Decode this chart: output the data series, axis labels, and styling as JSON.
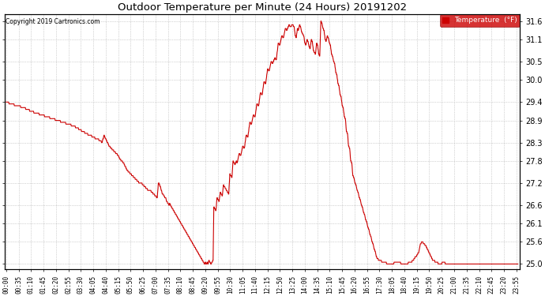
{
  "title": "Outdoor Temperature per Minute (24 Hours) 20191202",
  "copyright_text": "Copyright 2019 Cartronics.com",
  "legend_label": "Temperature  (°F)",
  "line_color": "#cc0000",
  "background_color": "#ffffff",
  "grid_color": "#999999",
  "ylim": [
    24.85,
    31.78
  ],
  "yticks": [
    25.0,
    25.6,
    26.1,
    26.6,
    27.2,
    27.8,
    28.3,
    28.9,
    29.4,
    30.0,
    30.5,
    31.1,
    31.6
  ],
  "x_tick_labels": [
    "00:00",
    "00:35",
    "01:10",
    "01:45",
    "02:20",
    "02:55",
    "03:30",
    "04:05",
    "04:40",
    "05:15",
    "05:50",
    "06:25",
    "07:00",
    "07:35",
    "08:10",
    "08:45",
    "09:20",
    "09:55",
    "10:30",
    "11:05",
    "11:40",
    "12:15",
    "12:50",
    "13:25",
    "14:00",
    "14:35",
    "15:10",
    "15:45",
    "16:20",
    "16:55",
    "17:30",
    "18:05",
    "18:40",
    "19:15",
    "19:50",
    "20:25",
    "21:00",
    "21:35",
    "22:10",
    "22:45",
    "23:20",
    "23:55"
  ],
  "control_points": [
    [
      0,
      29.4
    ],
    [
      15,
      29.35
    ],
    [
      30,
      29.3
    ],
    [
      50,
      29.25
    ],
    [
      70,
      29.15
    ],
    [
      85,
      29.1
    ],
    [
      100,
      29.05
    ],
    [
      115,
      29.0
    ],
    [
      130,
      28.95
    ],
    [
      145,
      28.9
    ],
    [
      160,
      28.85
    ],
    [
      175,
      28.8
    ],
    [
      190,
      28.75
    ],
    [
      200,
      28.7
    ],
    [
      215,
      28.6
    ],
    [
      225,
      28.55
    ],
    [
      235,
      28.5
    ],
    [
      245,
      28.45
    ],
    [
      255,
      28.4
    ],
    [
      265,
      28.35
    ],
    [
      270,
      28.3
    ],
    [
      275,
      28.5
    ],
    [
      280,
      28.4
    ],
    [
      285,
      28.3
    ],
    [
      290,
      28.2
    ],
    [
      295,
      28.15
    ],
    [
      300,
      28.1
    ],
    [
      305,
      28.05
    ],
    [
      310,
      28.0
    ],
    [
      315,
      27.95
    ],
    [
      320,
      27.85
    ],
    [
      325,
      27.8
    ],
    [
      330,
      27.75
    ],
    [
      335,
      27.65
    ],
    [
      340,
      27.55
    ],
    [
      345,
      27.5
    ],
    [
      350,
      27.45
    ],
    [
      355,
      27.4
    ],
    [
      360,
      27.35
    ],
    [
      365,
      27.3
    ],
    [
      370,
      27.25
    ],
    [
      375,
      27.2
    ],
    [
      380,
      27.2
    ],
    [
      385,
      27.15
    ],
    [
      390,
      27.1
    ],
    [
      395,
      27.05
    ],
    [
      400,
      27.0
    ],
    [
      405,
      27.0
    ],
    [
      410,
      26.95
    ],
    [
      415,
      26.9
    ],
    [
      420,
      26.85
    ],
    [
      425,
      26.8
    ],
    [
      428,
      27.2
    ],
    [
      432,
      27.15
    ],
    [
      436,
      27.0
    ],
    [
      440,
      26.9
    ],
    [
      444,
      26.85
    ],
    [
      448,
      26.8
    ],
    [
      452,
      26.7
    ],
    [
      455,
      26.65
    ],
    [
      458,
      26.6
    ],
    [
      460,
      26.65
    ],
    [
      462,
      26.6
    ],
    [
      465,
      26.55
    ],
    [
      468,
      26.5
    ],
    [
      471,
      26.45
    ],
    [
      474,
      26.4
    ],
    [
      477,
      26.35
    ],
    [
      480,
      26.3
    ],
    [
      483,
      26.25
    ],
    [
      486,
      26.2
    ],
    [
      489,
      26.15
    ],
    [
      492,
      26.1
    ],
    [
      495,
      26.05
    ],
    [
      498,
      26.0
    ],
    [
      501,
      25.95
    ],
    [
      504,
      25.9
    ],
    [
      507,
      25.85
    ],
    [
      510,
      25.8
    ],
    [
      513,
      25.75
    ],
    [
      516,
      25.7
    ],
    [
      519,
      25.65
    ],
    [
      522,
      25.6
    ],
    [
      525,
      25.55
    ],
    [
      528,
      25.5
    ],
    [
      531,
      25.45
    ],
    [
      534,
      25.4
    ],
    [
      537,
      25.35
    ],
    [
      540,
      25.3
    ],
    [
      543,
      25.25
    ],
    [
      546,
      25.2
    ],
    [
      549,
      25.15
    ],
    [
      552,
      25.1
    ],
    [
      555,
      25.05
    ],
    [
      558,
      25.0
    ],
    [
      560,
      25.05
    ],
    [
      563,
      25.0
    ],
    [
      565,
      25.05
    ],
    [
      568,
      25.0
    ],
    [
      570,
      25.1
    ],
    [
      573,
      25.05
    ],
    [
      576,
      25.0
    ],
    [
      579,
      25.05
    ],
    [
      582,
      25.1
    ],
    [
      584,
      26.55
    ],
    [
      587,
      26.5
    ],
    [
      590,
      26.45
    ],
    [
      593,
      26.8
    ],
    [
      596,
      26.75
    ],
    [
      599,
      26.7
    ],
    [
      602,
      26.95
    ],
    [
      605,
      26.9
    ],
    [
      608,
      26.85
    ],
    [
      611,
      27.15
    ],
    [
      614,
      27.1
    ],
    [
      617,
      27.05
    ],
    [
      620,
      27.0
    ],
    [
      623,
      26.95
    ],
    [
      626,
      26.9
    ],
    [
      629,
      27.45
    ],
    [
      632,
      27.4
    ],
    [
      635,
      27.35
    ],
    [
      638,
      27.8
    ],
    [
      641,
      27.75
    ],
    [
      644,
      27.7
    ],
    [
      647,
      27.8
    ],
    [
      650,
      27.75
    ],
    [
      655,
      28.0
    ],
    [
      660,
      27.95
    ],
    [
      665,
      28.2
    ],
    [
      670,
      28.15
    ],
    [
      675,
      28.5
    ],
    [
      680,
      28.45
    ],
    [
      685,
      28.85
    ],
    [
      690,
      28.8
    ],
    [
      695,
      29.05
    ],
    [
      700,
      29.0
    ],
    [
      705,
      29.35
    ],
    [
      710,
      29.3
    ],
    [
      715,
      29.65
    ],
    [
      720,
      29.6
    ],
    [
      725,
      29.95
    ],
    [
      730,
      29.9
    ],
    [
      735,
      30.3
    ],
    [
      740,
      30.25
    ],
    [
      745,
      30.5
    ],
    [
      750,
      30.45
    ],
    [
      755,
      30.6
    ],
    [
      760,
      30.55
    ],
    [
      765,
      31.0
    ],
    [
      770,
      30.95
    ],
    [
      775,
      31.2
    ],
    [
      780,
      31.15
    ],
    [
      785,
      31.4
    ],
    [
      790,
      31.35
    ],
    [
      795,
      31.5
    ],
    [
      800,
      31.45
    ],
    [
      805,
      31.5
    ],
    [
      810,
      31.45
    ],
    [
      813,
      31.2
    ],
    [
      816,
      31.15
    ],
    [
      819,
      31.4
    ],
    [
      822,
      31.35
    ],
    [
      825,
      31.5
    ],
    [
      828,
      31.45
    ],
    [
      831,
      31.3
    ],
    [
      834,
      31.25
    ],
    [
      837,
      31.2
    ],
    [
      840,
      31.0
    ],
    [
      843,
      30.95
    ],
    [
      846,
      31.1
    ],
    [
      849,
      31.05
    ],
    [
      852,
      30.9
    ],
    [
      855,
      30.85
    ],
    [
      858,
      31.1
    ],
    [
      861,
      31.05
    ],
    [
      864,
      30.8
    ],
    [
      867,
      30.75
    ],
    [
      870,
      30.7
    ],
    [
      873,
      31.0
    ],
    [
      876,
      30.95
    ],
    [
      879,
      30.7
    ],
    [
      882,
      30.65
    ],
    [
      885,
      31.6
    ],
    [
      888,
      31.55
    ],
    [
      891,
      31.4
    ],
    [
      894,
      31.35
    ],
    [
      897,
      31.1
    ],
    [
      900,
      31.05
    ],
    [
      903,
      31.2
    ],
    [
      906,
      31.15
    ],
    [
      909,
      31.0
    ],
    [
      912,
      30.95
    ],
    [
      915,
      30.7
    ],
    [
      918,
      30.65
    ],
    [
      921,
      30.5
    ],
    [
      924,
      30.45
    ],
    [
      927,
      30.2
    ],
    [
      930,
      30.15
    ],
    [
      933,
      29.9
    ],
    [
      936,
      29.85
    ],
    [
      939,
      29.6
    ],
    [
      942,
      29.55
    ],
    [
      945,
      29.3
    ],
    [
      948,
      29.25
    ],
    [
      951,
      29.0
    ],
    [
      954,
      28.95
    ],
    [
      957,
      28.6
    ],
    [
      960,
      28.55
    ],
    [
      963,
      28.2
    ],
    [
      966,
      28.15
    ],
    [
      969,
      27.8
    ],
    [
      972,
      27.75
    ],
    [
      975,
      27.4
    ],
    [
      978,
      27.35
    ],
    [
      981,
      27.2
    ],
    [
      984,
      27.15
    ],
    [
      987,
      27.0
    ],
    [
      990,
      26.95
    ],
    [
      993,
      26.8
    ],
    [
      996,
      26.75
    ],
    [
      999,
      26.6
    ],
    [
      1002,
      26.55
    ],
    [
      1005,
      26.4
    ],
    [
      1008,
      26.35
    ],
    [
      1011,
      26.2
    ],
    [
      1014,
      26.15
    ],
    [
      1017,
      26.0
    ],
    [
      1020,
      25.95
    ],
    [
      1023,
      25.8
    ],
    [
      1026,
      25.75
    ],
    [
      1029,
      25.6
    ],
    [
      1032,
      25.55
    ],
    [
      1035,
      25.4
    ],
    [
      1038,
      25.35
    ],
    [
      1041,
      25.2
    ],
    [
      1044,
      25.15
    ],
    [
      1050,
      25.1
    ],
    [
      1060,
      25.05
    ],
    [
      1080,
      25.0
    ],
    [
      1100,
      25.05
    ],
    [
      1120,
      25.0
    ],
    [
      1140,
      25.05
    ],
    [
      1160,
      25.3
    ],
    [
      1165,
      25.55
    ],
    [
      1170,
      25.6
    ],
    [
      1175,
      25.55
    ],
    [
      1180,
      25.5
    ],
    [
      1185,
      25.4
    ],
    [
      1190,
      25.3
    ],
    [
      1195,
      25.2
    ],
    [
      1200,
      25.1
    ],
    [
      1210,
      25.05
    ],
    [
      1220,
      25.0
    ],
    [
      1230,
      25.05
    ],
    [
      1239,
      25.0
    ],
    [
      1260,
      25.0
    ],
    [
      1280,
      25.0
    ],
    [
      1300,
      25.0
    ],
    [
      1320,
      25.0
    ],
    [
      1340,
      25.0
    ],
    [
      1360,
      25.0
    ],
    [
      1380,
      25.0
    ],
    [
      1400,
      25.0
    ],
    [
      1420,
      25.0
    ],
    [
      1439,
      25.0
    ]
  ]
}
